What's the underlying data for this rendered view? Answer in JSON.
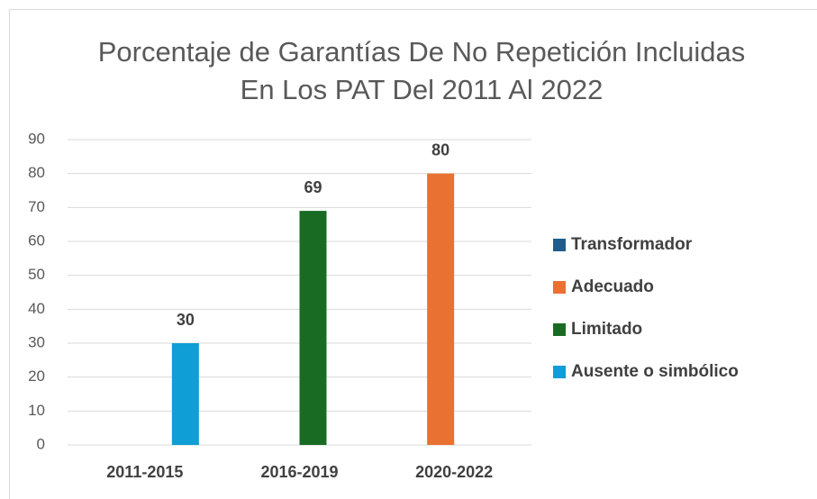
{
  "chart_data": {
    "type": "bar",
    "title": "Porcentaje de Garantías De No Repetición Incluidas En Los PAT Del 2011 Al 2022",
    "categories": [
      "2011-2015",
      "2016-2019",
      "2020-2022"
    ],
    "series": [
      {
        "name": "Transformador",
        "color": "#1f5c8b",
        "values": [
          null,
          null,
          null
        ]
      },
      {
        "name": "Adecuado",
        "color": "#e97132",
        "values": [
          null,
          null,
          80
        ]
      },
      {
        "name": "Limitado",
        "color": "#196b24",
        "values": [
          null,
          69,
          null
        ]
      },
      {
        "name": "Ausente o simbólico",
        "color": "#0f9ed5",
        "values": [
          30,
          null,
          null
        ]
      }
    ],
    "ylim": [
      0,
      90
    ],
    "yticks": [
      0,
      10,
      20,
      30,
      40,
      50,
      60,
      70,
      80,
      90
    ],
    "grid": true,
    "legend": "right"
  }
}
